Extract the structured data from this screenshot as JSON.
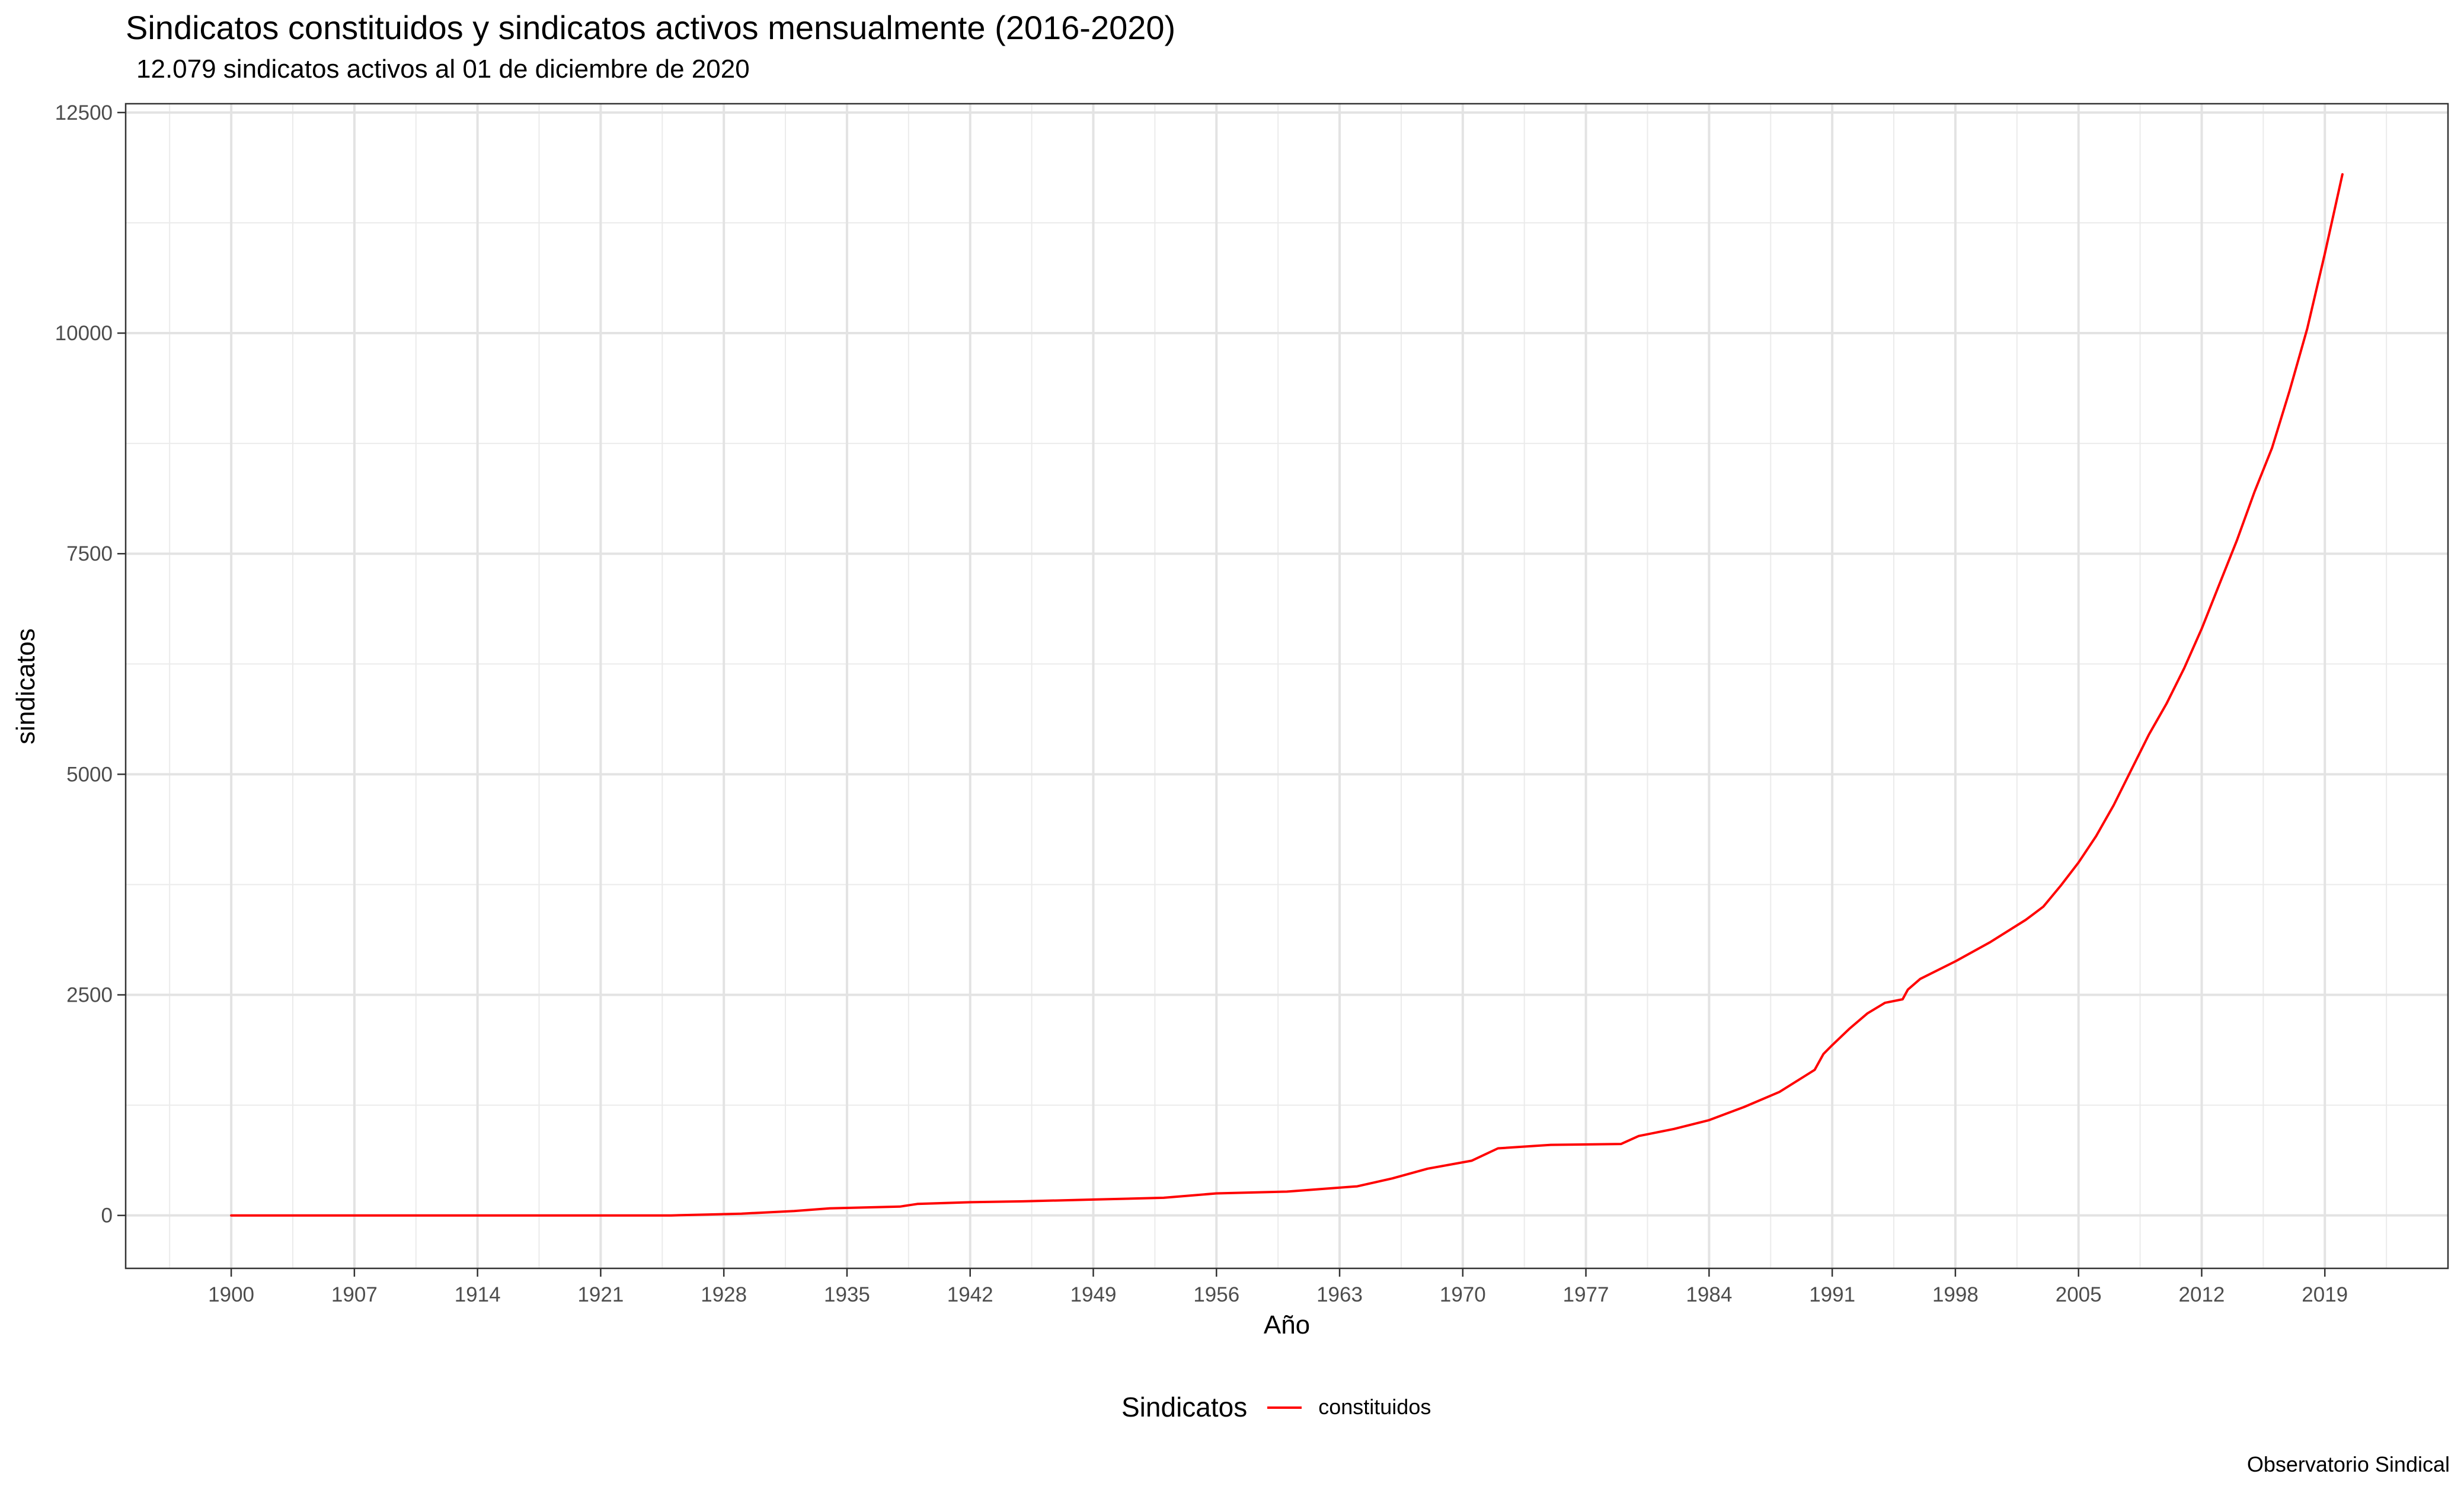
{
  "chart_data": {
    "type": "line",
    "title": "Sindicatos constituidos y sindicatos activos mensualmente (2016-2020)",
    "subtitle": "12.079 sindicatos activos al 01 de diciembre de 2020",
    "xlabel": "Año",
    "ylabel": "sindicatos",
    "caption": "Observatorio Sindical",
    "xlim": [
      1894,
      2026
    ],
    "ylim": [
      -600,
      12600
    ],
    "x_ticks": [
      1900,
      1907,
      1914,
      1921,
      1928,
      1935,
      1942,
      1949,
      1956,
      1963,
      1970,
      1977,
      1984,
      1991,
      1998,
      2005,
      2012,
      2019
    ],
    "y_ticks": [
      0,
      2500,
      5000,
      7500,
      10000,
      12500
    ],
    "grid": true,
    "legend": {
      "title": "Sindicatos",
      "position": "bottom"
    },
    "series": [
      {
        "name": "constituidos",
        "color": "#ff0000",
        "x": [
          1900,
          1925,
          1927,
          1929,
          1930,
          1932,
          1934,
          1936,
          1938,
          1939,
          1942,
          1945,
          1949,
          1953,
          1956,
          1960,
          1964,
          1966,
          1968,
          1970.5,
          1972,
          1975,
          1979,
          1980,
          1982,
          1984,
          1986,
          1988,
          1990,
          1990.5,
          1991,
          1992,
          1993,
          1994,
          1995,
          1995.3,
          1996,
          1998,
          2000,
          2002,
          2003,
          2004,
          2005,
          2006,
          2007,
          2008,
          2009,
          2010,
          2011,
          2012,
          2013,
          2014,
          2015,
          2016,
          2017,
          2018,
          2019,
          2020
        ],
        "y": [
          0,
          0,
          10,
          20,
          30,
          50,
          80,
          90,
          100,
          130,
          150,
          160,
          180,
          200,
          250,
          270,
          330,
          420,
          530,
          620,
          760,
          800,
          810,
          900,
          980,
          1080,
          1230,
          1400,
          1650,
          1830,
          1930,
          2120,
          2290,
          2410,
          2450,
          2560,
          2680,
          2880,
          3100,
          3350,
          3500,
          3740,
          4000,
          4300,
          4650,
          5050,
          5450,
          5800,
          6200,
          6650,
          7150,
          7650,
          8200,
          8700,
          9350,
          10050,
          10900,
          11800
        ]
      }
    ]
  }
}
